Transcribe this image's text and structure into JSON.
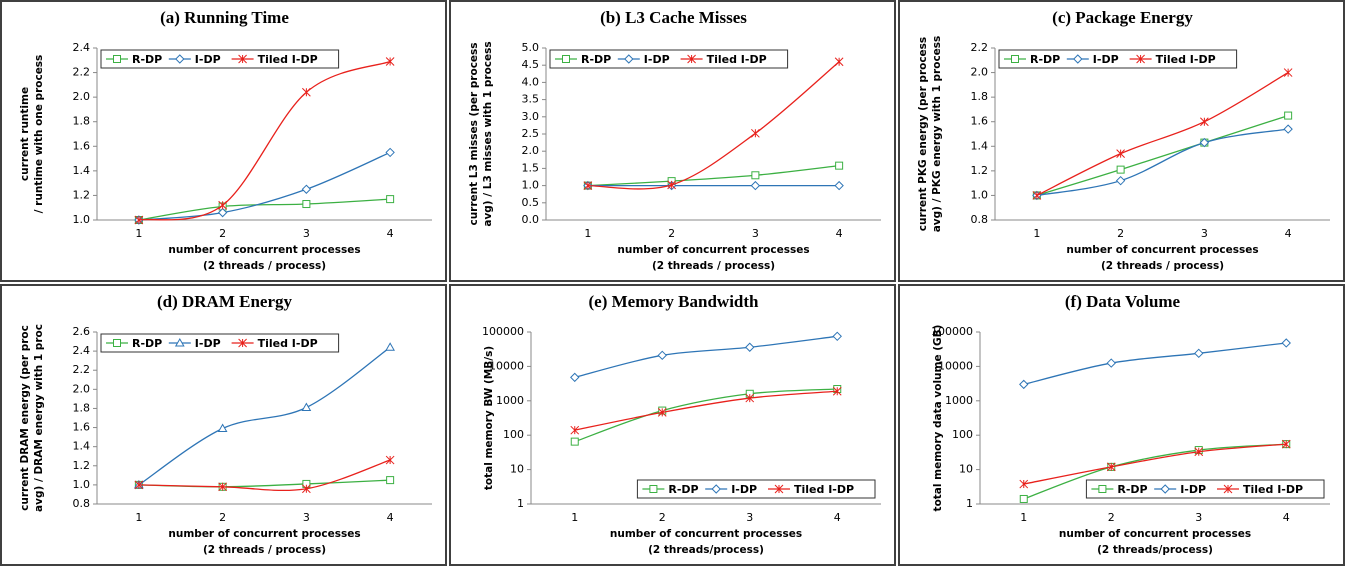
{
  "chart_data": [
    {
      "type": "line",
      "title": "(a) Running Time",
      "categories": [
        "1",
        "2",
        "3",
        "4"
      ],
      "xlabel": [
        "number of concurrent processes",
        "(2 threads / process)"
      ],
      "ylabel": [
        "current runtime",
        "/ runtime with one process"
      ],
      "ylim": [
        1.0,
        2.4
      ],
      "log": false,
      "legend": "top-left",
      "yticks": [
        {
          "value": 1.0,
          "label": "1.0"
        },
        {
          "value": 1.2,
          "label": "1.2"
        },
        {
          "value": 1.4,
          "label": "1.4"
        },
        {
          "value": 1.6,
          "label": "1.6"
        },
        {
          "value": 1.8,
          "label": "1.8"
        },
        {
          "value": 2.0,
          "label": "2.0"
        },
        {
          "value": 2.2,
          "label": "2.2"
        },
        {
          "value": 2.4,
          "label": "2.4"
        }
      ],
      "series": [
        {
          "name": "R-DP",
          "color": "#3cb043",
          "marker": "square",
          "values": [
            1.0,
            1.11,
            1.13,
            1.17
          ]
        },
        {
          "name": "I-DP",
          "color": "#2e75b6",
          "marker": "diamond",
          "values": [
            1.0,
            1.06,
            1.25,
            1.55
          ]
        },
        {
          "name": "Tiled I-DP",
          "color": "#e8211c",
          "marker": "star",
          "values": [
            1.0,
            1.12,
            2.04,
            2.29
          ]
        }
      ]
    },
    {
      "type": "line",
      "title": "(b) L3 Cache Misses",
      "categories": [
        "1",
        "2",
        "3",
        "4"
      ],
      "xlabel": [
        "number of concurrent processes",
        "(2 threads / process)"
      ],
      "ylabel": [
        "current L3 misses (per process",
        "avg) / L3 misses with 1 process"
      ],
      "ylim": [
        0.0,
        5.0
      ],
      "log": false,
      "legend": "top-left",
      "yticks": [
        {
          "value": 0.0,
          "label": "0.0"
        },
        {
          "value": 0.5,
          "label": "0.5"
        },
        {
          "value": 1.0,
          "label": "1.0"
        },
        {
          "value": 1.5,
          "label": "1.5"
        },
        {
          "value": 2.0,
          "label": "2.0"
        },
        {
          "value": 2.5,
          "label": "2.5"
        },
        {
          "value": 3.0,
          "label": "3.0"
        },
        {
          "value": 3.5,
          "label": "3.5"
        },
        {
          "value": 4.0,
          "label": "4.0"
        },
        {
          "value": 4.5,
          "label": "4.5"
        },
        {
          "value": 5.0,
          "label": "5.0"
        }
      ],
      "series": [
        {
          "name": "R-DP",
          "color": "#3cb043",
          "marker": "square",
          "values": [
            1.0,
            1.13,
            1.3,
            1.58
          ]
        },
        {
          "name": "I-DP",
          "color": "#2e75b6",
          "marker": "diamond",
          "values": [
            1.0,
            1.0,
            1.0,
            1.0
          ]
        },
        {
          "name": "Tiled I-DP",
          "color": "#e8211c",
          "marker": "star",
          "values": [
            1.0,
            1.02,
            2.52,
            4.6
          ]
        }
      ]
    },
    {
      "type": "line",
      "title": "(c) Package Energy",
      "categories": [
        "1",
        "2",
        "3",
        "4"
      ],
      "xlabel": [
        "number of concurrent processes",
        "(2 threads / process)"
      ],
      "ylabel": [
        "current PKG energy (per process",
        "avg) / PKG energy with 1 process"
      ],
      "ylim": [
        0.8,
        2.2
      ],
      "log": false,
      "legend": "top-left",
      "yticks": [
        {
          "value": 0.8,
          "label": "0.8"
        },
        {
          "value": 1.0,
          "label": "1.0"
        },
        {
          "value": 1.2,
          "label": "1.2"
        },
        {
          "value": 1.4,
          "label": "1.4"
        },
        {
          "value": 1.6,
          "label": "1.6"
        },
        {
          "value": 1.8,
          "label": "1.8"
        },
        {
          "value": 2.0,
          "label": "2.0"
        },
        {
          "value": 2.2,
          "label": "2.2"
        }
      ],
      "series": [
        {
          "name": "R-DP",
          "color": "#3cb043",
          "marker": "square",
          "values": [
            1.0,
            1.21,
            1.43,
            1.65
          ]
        },
        {
          "name": "I-DP",
          "color": "#2e75b6",
          "marker": "diamond",
          "values": [
            1.0,
            1.12,
            1.43,
            1.54
          ]
        },
        {
          "name": "Tiled I-DP",
          "color": "#e8211c",
          "marker": "star",
          "values": [
            1.0,
            1.34,
            1.6,
            2.0
          ]
        }
      ]
    },
    {
      "type": "line",
      "title": "(d) DRAM Energy",
      "categories": [
        "1",
        "2",
        "3",
        "4"
      ],
      "xlabel": [
        "number of concurrent processes",
        "(2 threads / process)"
      ],
      "ylabel": [
        "current DRAM energy (per proc",
        "avg) / DRAM energy with 1 proc"
      ],
      "ylim": [
        0.8,
        2.6
      ],
      "log": false,
      "legend": "top-left",
      "yticks": [
        {
          "value": 0.8,
          "label": "0.8"
        },
        {
          "value": 1.0,
          "label": "1.0"
        },
        {
          "value": 1.2,
          "label": "1.2"
        },
        {
          "value": 1.4,
          "label": "1.4"
        },
        {
          "value": 1.6,
          "label": "1.6"
        },
        {
          "value": 1.8,
          "label": "1.8"
        },
        {
          "value": 2.0,
          "label": "2.0"
        },
        {
          "value": 2.2,
          "label": "2.2"
        },
        {
          "value": 2.4,
          "label": "2.4"
        },
        {
          "value": 2.6,
          "label": "2.6"
        }
      ],
      "series": [
        {
          "name": "R-DP",
          "color": "#3cb043",
          "marker": "square",
          "values": [
            1.0,
            0.98,
            1.01,
            1.05
          ]
        },
        {
          "name": "I-DP",
          "color": "#2e75b6",
          "marker": "triangle",
          "values": [
            1.0,
            1.59,
            1.81,
            2.44
          ]
        },
        {
          "name": "Tiled I-DP",
          "color": "#e8211c",
          "marker": "star",
          "values": [
            1.0,
            0.98,
            0.96,
            1.26
          ]
        }
      ]
    },
    {
      "type": "line",
      "title": "(e) Memory Bandwidth",
      "categories": [
        "1",
        "2",
        "3",
        "4"
      ],
      "xlabel": [
        "number of concurrent processes",
        "(2 threads/process)"
      ],
      "ylabel": [
        "total memory BW (MB/s)"
      ],
      "ylim": [
        1,
        100000
      ],
      "log": true,
      "legend": "bottom-right",
      "yticks": [
        1,
        10,
        100,
        1000,
        10000,
        100000
      ],
      "series": [
        {
          "name": "R-DP",
          "color": "#3cb043",
          "marker": "square",
          "values": [
            65,
            520,
            1600,
            2200
          ]
        },
        {
          "name": "I-DP",
          "color": "#2e75b6",
          "marker": "diamond",
          "values": [
            4800,
            21000,
            36000,
            75000
          ]
        },
        {
          "name": "Tiled I-DP",
          "color": "#e8211c",
          "marker": "star",
          "values": [
            140,
            460,
            1200,
            1900
          ]
        }
      ]
    },
    {
      "type": "line",
      "title": "(f) Data Volume",
      "categories": [
        "1",
        "2",
        "3",
        "4"
      ],
      "xlabel": [
        "number of concurrent processes",
        "(2 threads/process)"
      ],
      "ylabel": [
        "total memory data volume (GB)"
      ],
      "ylim": [
        1,
        100000
      ],
      "log": true,
      "legend": "bottom-right",
      "yticks": [
        1,
        10,
        100,
        1000,
        10000,
        100000
      ],
      "series": [
        {
          "name": "R-DP",
          "color": "#3cb043",
          "marker": "square",
          "values": [
            1.4,
            12,
            37,
            55
          ]
        },
        {
          "name": "I-DP",
          "color": "#2e75b6",
          "marker": "diamond",
          "values": [
            3000,
            12500,
            24000,
            48000
          ]
        },
        {
          "name": "Tiled I-DP",
          "color": "#e8211c",
          "marker": "star",
          "values": [
            3.8,
            12,
            33,
            55
          ]
        }
      ]
    }
  ]
}
